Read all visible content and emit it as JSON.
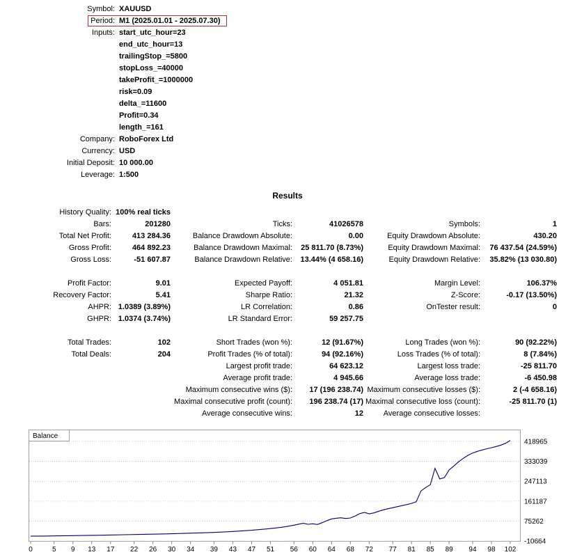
{
  "colors": {
    "highlight_box": "#a83232",
    "chart_line": "#000066",
    "grid": "#c8c8c8",
    "chart_border": "#a0a0a0",
    "tick": "#808080"
  },
  "header": {
    "rows": [
      {
        "label": "Symbol:",
        "value": "XAUUSD",
        "highlight": false
      },
      {
        "label": "Period:",
        "value": "M1 (2025.01.01 - 2025.07.30)",
        "highlight": true
      },
      {
        "label": "Inputs:",
        "value": "start_utc_hour=23",
        "highlight": false
      },
      {
        "label": "",
        "value": "end_utc_hour=13",
        "highlight": false
      },
      {
        "label": "",
        "value": "trailingStop_=5800",
        "highlight": false
      },
      {
        "label": "",
        "value": "stopLoss_=40000",
        "highlight": false
      },
      {
        "label": "",
        "value": "takeProfit_=1000000",
        "highlight": false
      },
      {
        "label": "",
        "value": "risk=0.09",
        "highlight": false
      },
      {
        "label": "",
        "value": "delta_=11600",
        "highlight": false
      },
      {
        "label": "",
        "value": "Profit=0.34",
        "highlight": false
      },
      {
        "label": "",
        "value": "length_=161",
        "highlight": false
      },
      {
        "label": "Company:",
        "value": "RoboForex Ltd",
        "highlight": false
      },
      {
        "label": "Currency:",
        "value": "USD",
        "highlight": false
      },
      {
        "label": "Initial Deposit:",
        "value": "10 000.00",
        "highlight": false
      },
      {
        "label": "Leverage:",
        "value": "1:500",
        "highlight": false
      }
    ]
  },
  "results": {
    "title": "Results",
    "rows": [
      [
        "History Quality:",
        "100% real ticks",
        "",
        "",
        "",
        ""
      ],
      [
        "Bars:",
        "201280",
        "Ticks:",
        "41026578",
        "Symbols:",
        "1"
      ],
      [
        "Total Net Profit:",
        "413 284.36",
        "Balance Drawdown Absolute:",
        "0.00",
        "Equity Drawdown Absolute:",
        "430.20"
      ],
      [
        "Gross Profit:",
        "464 892.23",
        "Balance Drawdown Maximal:",
        "25 811.70 (8.73%)",
        "Equity Drawdown Maximal:",
        "76 437.54 (24.59%)"
      ],
      [
        "Gross Loss:",
        "-51 607.87",
        "Balance Drawdown Relative:",
        "13.44% (4 658.16)",
        "Equity Drawdown Relative:",
        "35.82% (13 030.80)"
      ],
      [],
      [
        "Profit Factor:",
        "9.01",
        "Expected Payoff:",
        "4 051.81",
        "Margin Level:",
        "106.37%"
      ],
      [
        "Recovery Factor:",
        "5.41",
        "Sharpe Ratio:",
        "21.32",
        "Z-Score:",
        "-0.17 (13.50%)"
      ],
      [
        "AHPR:",
        "1.0389 (3.89%)",
        "LR Correlation:",
        "0.86",
        "OnTester result:",
        "0"
      ],
      [
        "GHPR:",
        "1.0374 (3.74%)",
        "LR Standard Error:",
        "59 257.75",
        "",
        ""
      ],
      [],
      [
        "Total Trades:",
        "102",
        "Short Trades (won %):",
        "12 (91.67%)",
        "Long Trades (won %):",
        "90 (92.22%)"
      ],
      [
        "Total Deals:",
        "204",
        "Profit Trades (% of total):",
        "94 (92.16%)",
        "Loss Trades (% of total):",
        "8 (7.84%)"
      ],
      [
        "",
        "",
        "Largest profit trade:",
        "64 623.12",
        "Largest loss trade:",
        "-25 811.70"
      ],
      [
        "",
        "",
        "Average profit trade:",
        "4 945.66",
        "Average loss trade:",
        "-6 450.98"
      ],
      [
        "",
        "",
        "Maximum consecutive wins ($):",
        "17 (196 238.74)",
        "Maximum consecutive losses ($):",
        "2 (-4 658.16)"
      ],
      [
        "",
        "",
        "Maximal consecutive profit (count):",
        "196 238.74 (17)",
        "Maximal consecutive loss (count):",
        "-25 811.70 (1)"
      ],
      [
        "",
        "",
        "Average consecutive wins:",
        "12",
        "Average consecutive losses:",
        ""
      ]
    ]
  },
  "chart_data": {
    "type": "line",
    "title": "Balance",
    "series_name": "Balance",
    "xlabel": "",
    "ylabel": "",
    "xlim": [
      0,
      102
    ],
    "ylim": [
      -10664,
      418965
    ],
    "grid": true,
    "legend_position": "top-left",
    "xticks": [
      0,
      5,
      9,
      13,
      17,
      22,
      26,
      30,
      34,
      39,
      43,
      47,
      51,
      56,
      60,
      64,
      68,
      72,
      77,
      81,
      85,
      89,
      94,
      98,
      102
    ],
    "yticks": [
      -10664,
      75262,
      161187,
      247113,
      333039,
      418965
    ],
    "ytick_labels": [
      "-10664",
      "75262",
      "161187",
      "247113",
      "333039",
      "418965"
    ],
    "points": [
      [
        0,
        10000
      ],
      [
        3,
        10700
      ],
      [
        5,
        11300
      ],
      [
        8,
        12200
      ],
      [
        11,
        13100
      ],
      [
        14,
        14000
      ],
      [
        17,
        15200
      ],
      [
        20,
        16300
      ],
      [
        23,
        17500
      ],
      [
        26,
        18700
      ],
      [
        29,
        20000
      ],
      [
        32,
        21700
      ],
      [
        35,
        23600
      ],
      [
        38,
        25700
      ],
      [
        41,
        28200
      ],
      [
        44,
        31600
      ],
      [
        47,
        35600
      ],
      [
        50,
        41000
      ],
      [
        52,
        45200
      ],
      [
        54,
        50300
      ],
      [
        56,
        57500
      ],
      [
        57,
        62000
      ],
      [
        58,
        65500
      ],
      [
        59,
        61500
      ],
      [
        60,
        63500
      ],
      [
        61,
        60500
      ],
      [
        62,
        68500
      ],
      [
        63,
        77000
      ],
      [
        64,
        84500
      ],
      [
        65,
        87500
      ],
      [
        66,
        89500
      ],
      [
        67,
        86500
      ],
      [
        68,
        88500
      ],
      [
        69,
        97000
      ],
      [
        70,
        107500
      ],
      [
        71,
        112500
      ],
      [
        72,
        106500
      ],
      [
        73,
        110500
      ],
      [
        74,
        117500
      ],
      [
        75,
        123500
      ],
      [
        76,
        128500
      ],
      [
        77,
        133000
      ],
      [
        78,
        137500
      ],
      [
        79,
        142000
      ],
      [
        80,
        146500
      ],
      [
        81,
        151500
      ],
      [
        82,
        158500
      ],
      [
        83,
        205000
      ],
      [
        84,
        220000
      ],
      [
        85,
        232000
      ],
      [
        86,
        303000
      ],
      [
        87,
        257000
      ],
      [
        88,
        263000
      ],
      [
        89,
        296000
      ],
      [
        90,
        313000
      ],
      [
        91,
        331000
      ],
      [
        92,
        346000
      ],
      [
        93,
        359000
      ],
      [
        94,
        369000
      ],
      [
        95,
        376000
      ],
      [
        96,
        382000
      ],
      [
        97,
        387000
      ],
      [
        98,
        392000
      ],
      [
        99,
        397000
      ],
      [
        100,
        403000
      ],
      [
        101,
        411000
      ],
      [
        102,
        423284
      ]
    ]
  }
}
